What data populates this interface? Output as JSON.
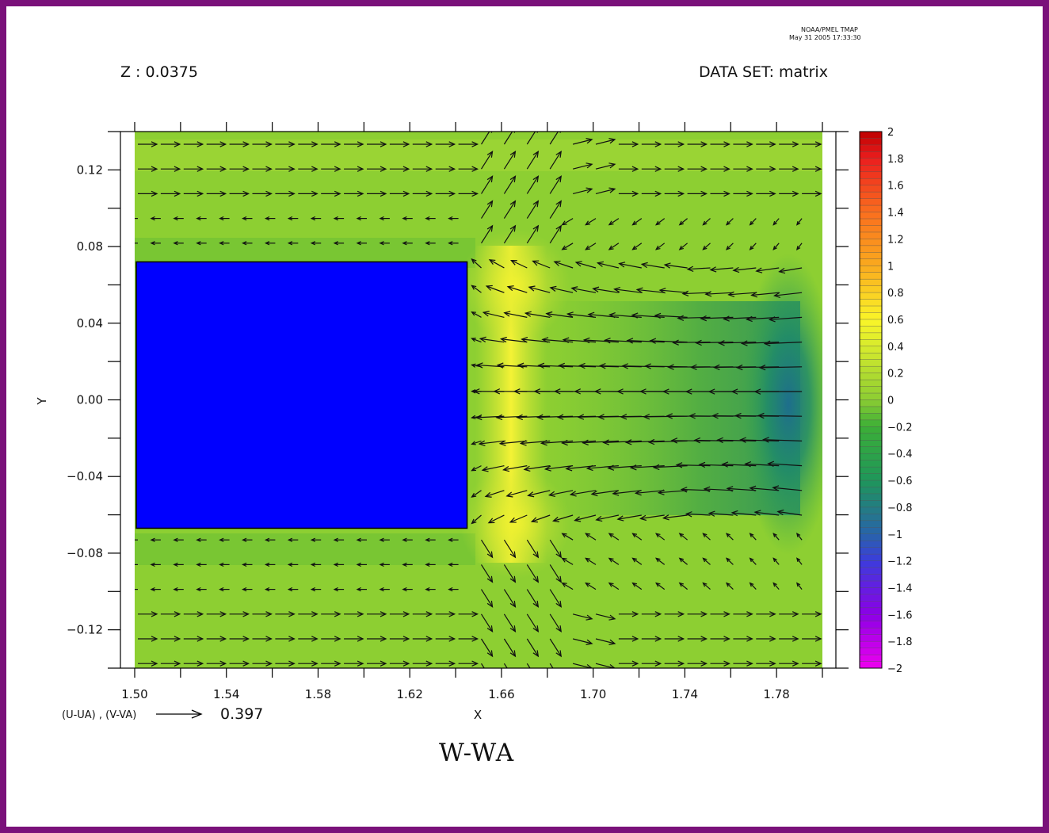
{
  "header": {
    "stamp_line1": "NOAA/PMEL TMAP",
    "stamp_line2": "May 31 2005 17:33:30",
    "z_label": "Z : 0.0375",
    "dataset_label": "DATA SET: matrix"
  },
  "vector_key": {
    "label": "(U-UA) , (V-VA)",
    "value": "0.397"
  },
  "colors": {
    "frame": "#7a117a",
    "obstacle": "#0000ff"
  },
  "chart_data": {
    "type": "heatmap",
    "title": "W-WA",
    "xlabel": "X",
    "ylabel": "Y",
    "xlim": [
      1.5,
      1.8
    ],
    "ylim": [
      -0.14,
      0.14
    ],
    "x_ticks": [
      1.5,
      1.54,
      1.58,
      1.62,
      1.66,
      1.7,
      1.74,
      1.78
    ],
    "x_tick_labels": [
      "1.50",
      "1.54",
      "1.58",
      "1.62",
      "1.66",
      "1.70",
      "1.74",
      "1.78"
    ],
    "y_ticks": [
      0.12,
      0.08,
      0.04,
      0.0,
      -0.04,
      -0.08,
      -0.12
    ],
    "y_tick_labels": [
      "0.12",
      "0.08",
      "0.04",
      "0.00",
      "−0.04",
      "−0.08",
      "−0.12"
    ],
    "obstacle": {
      "x": [
        1.5,
        1.645
      ],
      "y": [
        -0.067,
        0.072
      ]
    },
    "colorbar": {
      "range": [
        -2,
        2
      ],
      "labels": [
        "2",
        "1.8",
        "1.6",
        "1.4",
        "1.2",
        "1",
        "0.8",
        "0.6",
        "0.4",
        "0.2",
        "0",
        "−0.2",
        "−0.4",
        "−0.6",
        "−0.8",
        "−1",
        "−1.2",
        "−1.4",
        "−1.6",
        "−1.8",
        "−2"
      ]
    },
    "field_description": "contour field of W-WA mostly about -0.1 to 0.1, peaks ~0.5 near x=1.66, minimum ~-1.0 near x=1.785 y=0",
    "vectors": "overlaid (U-UA),(V-VA) arrow field; key arrow 0.397"
  }
}
